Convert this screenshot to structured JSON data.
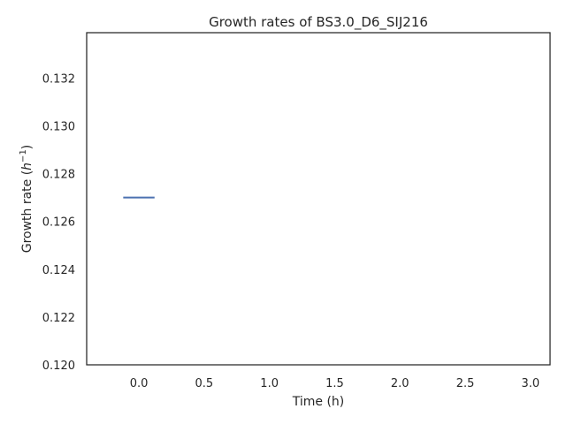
{
  "chart_data": {
    "type": "line",
    "title": "Growth rates of BS3.0_D6_SIJ216",
    "xlabel": "Time (h)",
    "ylabel_main": "Growth rate (",
    "ylabel_var": "h",
    "ylabel_sup": "−1",
    "ylabel_close": ")",
    "xlim": [
      -0.4,
      3.15
    ],
    "ylim": [
      0.12,
      0.1339
    ],
    "xticks": [
      "0.0",
      "0.5",
      "1.0",
      "1.5",
      "2.0",
      "2.5",
      "3.0"
    ],
    "yticks": [
      "0.120",
      "0.122",
      "0.124",
      "0.126",
      "0.128",
      "0.130",
      "0.132"
    ],
    "grid": false,
    "series": [
      {
        "color": "#4c72b0",
        "x": [
          -0.12,
          0.12
        ],
        "y": [
          0.127,
          0.127
        ]
      }
    ]
  }
}
